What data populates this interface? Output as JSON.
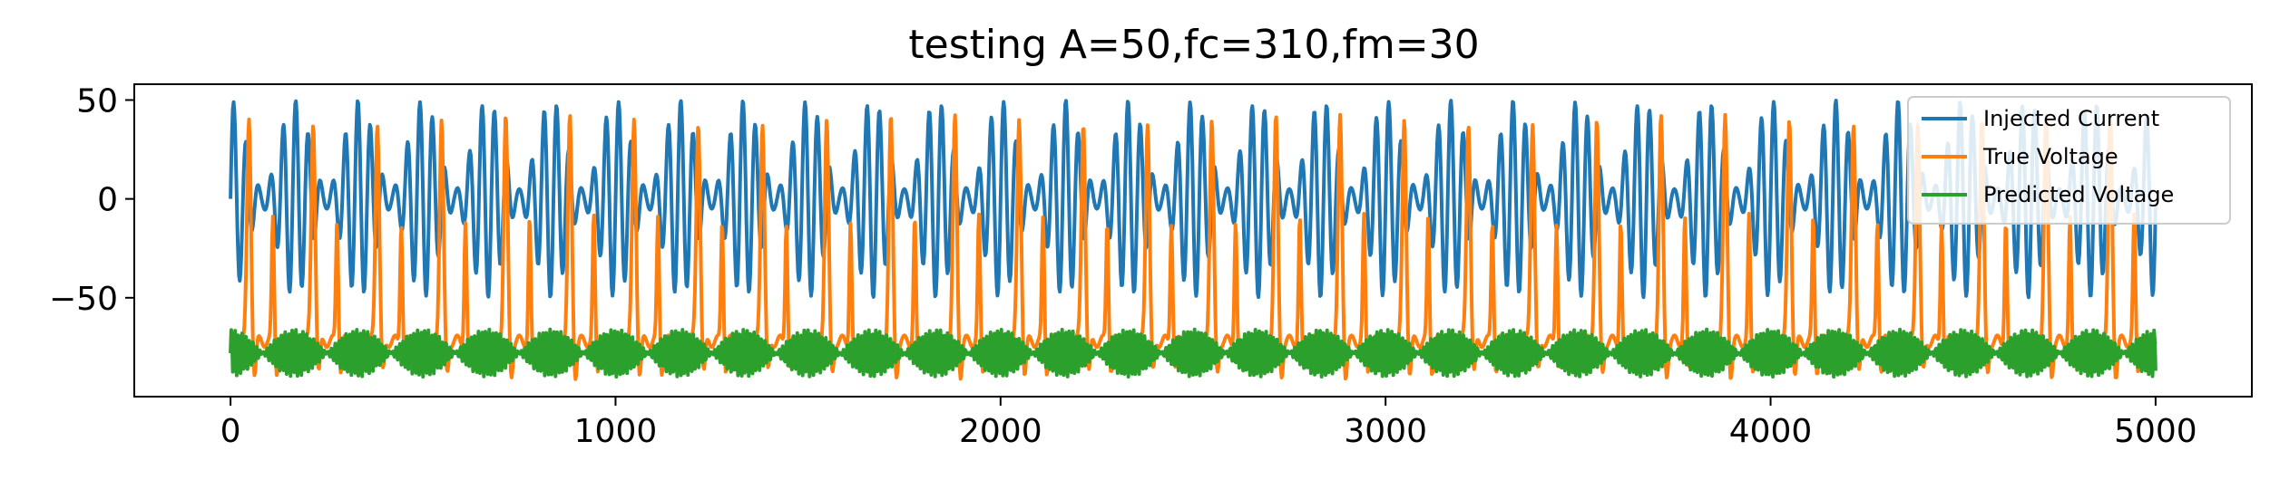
{
  "chart_data": {
    "type": "line",
    "title": "testing A=50,fc=310,fm=30",
    "xlabel": "",
    "ylabel": "",
    "xlim": [
      -250,
      5250
    ],
    "ylim": [
      -100,
      58
    ],
    "xticks": [
      0,
      1000,
      2000,
      3000,
      4000,
      5000
    ],
    "xtick_labels": [
      "0",
      "1000",
      "2000",
      "3000",
      "4000",
      "5000"
    ],
    "yticks": [
      50,
      0,
      -50
    ],
    "ytick_labels": [
      "50",
      "0",
      "−50"
    ],
    "grid": false,
    "legend_position": "top-right",
    "x_range": [
      0,
      5000
    ],
    "series": [
      {
        "name": "Injected Current",
        "color": "#1f77b4",
        "description": "amplitude-modulated sine: 50*sin(2*pi*310*t)*cos(2*pi*30*t) style, range about -50..50",
        "amplitude": 50,
        "carrier_period_samples": 32.26,
        "modulation_period_samples": 166.7
      },
      {
        "name": "True Voltage",
        "color": "#ff7f0e",
        "baseline": -72,
        "spike_peak": 40,
        "trough": -90,
        "spike_period_samples": 166.7
      },
      {
        "name": "Predicted Voltage",
        "color": "#2ca02c",
        "baseline": -78,
        "oscillation_max": -60,
        "oscillation_min": -90,
        "burst_period_samples": 166.7
      }
    ]
  }
}
